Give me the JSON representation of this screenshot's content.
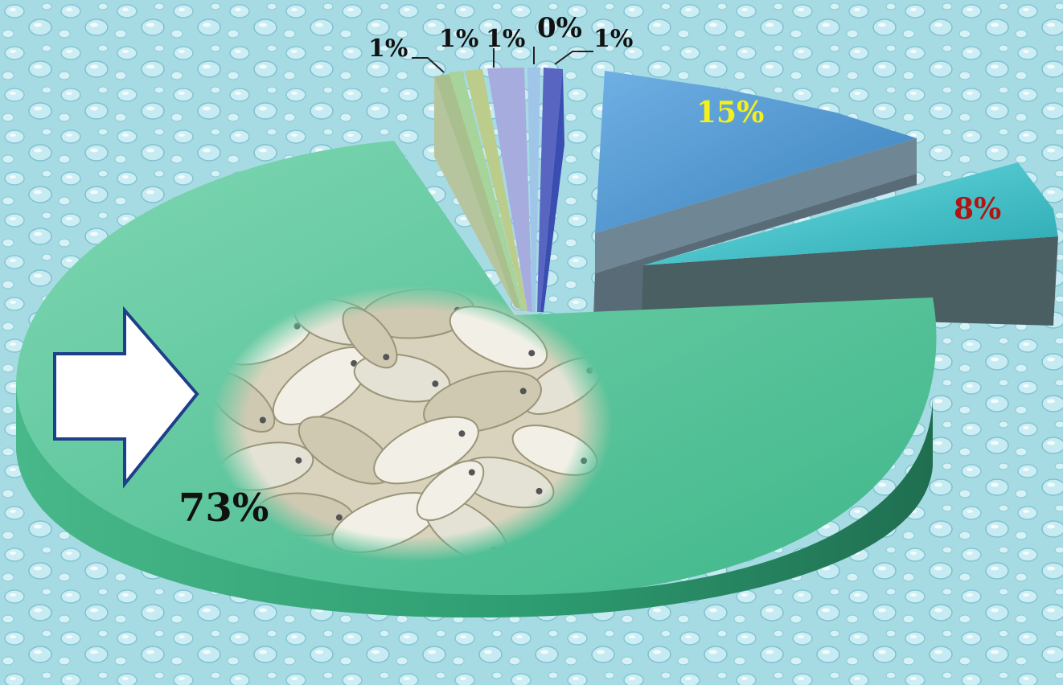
{
  "chart_data": {
    "type": "pie",
    "style": "3d-exploded",
    "title": "",
    "slices": [
      {
        "label": "73%",
        "value": 73,
        "color": "#4cc598",
        "label_color": "#111111"
      },
      {
        "label": "8%",
        "value": 8,
        "color": "#3cc1c9",
        "label_color": "#b01515"
      },
      {
        "label": "15%",
        "value": 15,
        "color": "#4f96cf",
        "label_color": "#f5f01a"
      },
      {
        "label": "1%",
        "value": 1,
        "color": "#5866c2",
        "label_color": "#111111"
      },
      {
        "label": "0%",
        "value": 0,
        "color": "#9fc6e8",
        "label_color": "#111111"
      },
      {
        "label": "1%",
        "value": 1,
        "color": "#a6acde",
        "label_color": "#111111"
      },
      {
        "label": "1%",
        "value": 1,
        "color": "#bccc8a",
        "label_color": "#111111"
      },
      {
        "label": "1%",
        "value": 1,
        "color": "#a6d49a",
        "label_color": "#111111"
      }
    ],
    "extra_slice": {
      "color": "#b6c59e",
      "note": "unlabeled narrow slice"
    },
    "legend": "none",
    "decorations": [
      "water-droplet-background",
      "dried-fish-photo",
      "white-arrow-pointing-right"
    ]
  }
}
